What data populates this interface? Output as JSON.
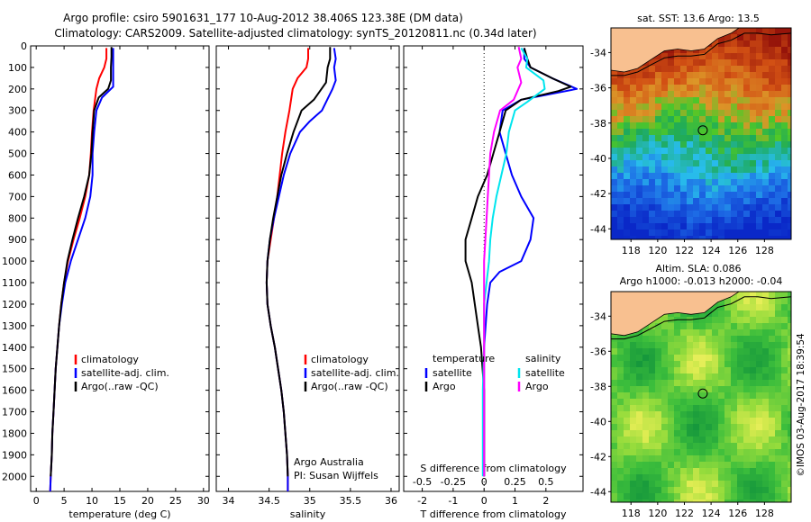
{
  "titles": {
    "line1": "Argo profile: csiro 5901631_177 10-Aug-2012 38.406S 123.38E (DM data)",
    "line2": "Climatology: CARS2009. Satellite-adjusted climatology: synTS_20120811.nc (0.34d later)"
  },
  "depth_ticks": [
    0,
    100,
    200,
    300,
    400,
    500,
    600,
    700,
    800,
    900,
    1000,
    1100,
    1200,
    1300,
    1400,
    1500,
    1600,
    1700,
    1800,
    1900,
    2000
  ],
  "colors": {
    "climatology": "#ff0000",
    "satellite": "#0000ff",
    "argo": "#000000",
    "sal_satellite": "#00e5ee",
    "sal_argo": "#ff00ff"
  },
  "chart_data": [
    {
      "type": "line",
      "name": "temperature-profile",
      "xlabel": "temperature (deg C)",
      "ylabel": "",
      "xlim": [
        -1,
        31
      ],
      "ylim": [
        2070,
        0
      ],
      "x_ticks": [
        "0",
        "5",
        "10",
        "15",
        "20",
        "25",
        "30"
      ],
      "legend": [
        "climatology",
        "satellite-adj. clim.",
        "Argo(..raw -QC)"
      ],
      "legend_position": "lower-middle",
      "series": [
        {
          "name": "climatology",
          "points": [
            [
              12.6,
              10
            ],
            [
              12.6,
              60
            ],
            [
              12.2,
              100
            ],
            [
              11.3,
              150
            ],
            [
              10.8,
              200
            ],
            [
              10.3,
              300
            ],
            [
              10,
              400
            ],
            [
              9.8,
              500
            ],
            [
              9.5,
              600
            ],
            [
              8.8,
              700
            ],
            [
              7.8,
              800
            ],
            [
              6.7,
              900
            ],
            [
              5.7,
              1000
            ],
            [
              5,
              1100
            ],
            [
              4.5,
              1200
            ],
            [
              4.1,
              1300
            ],
            [
              3.8,
              1400
            ],
            [
              3.5,
              1500
            ],
            [
              3.3,
              1600
            ],
            [
              3.1,
              1700
            ],
            [
              2.9,
              1800
            ],
            [
              2.8,
              1900
            ],
            [
              2.6,
              2000
            ],
            [
              2.5,
              2070
            ]
          ]
        },
        {
          "name": "satellite-adj. clim.",
          "points": [
            [
              13.8,
              10
            ],
            [
              13.8,
              60
            ],
            [
              13.8,
              120
            ],
            [
              13.8,
              190
            ],
            [
              11.8,
              240
            ],
            [
              10.8,
              300
            ],
            [
              10.4,
              400
            ],
            [
              10.1,
              500
            ],
            [
              10.1,
              600
            ],
            [
              9.7,
              700
            ],
            [
              8.8,
              800
            ],
            [
              7.5,
              900
            ],
            [
              6.2,
              1000
            ],
            [
              5.2,
              1100
            ],
            [
              4.6,
              1200
            ],
            [
              4.1,
              1300
            ],
            [
              3.8,
              1400
            ],
            [
              3.5,
              1500
            ],
            [
              3.3,
              1600
            ],
            [
              3.1,
              1700
            ],
            [
              2.9,
              1800
            ],
            [
              2.8,
              1900
            ],
            [
              2.6,
              2000
            ],
            [
              2.5,
              2070
            ]
          ]
        },
        {
          "name": "Argo(..raw -QC)",
          "points": [
            [
              13.5,
              5
            ],
            [
              13.5,
              50
            ],
            [
              13.4,
              100
            ],
            [
              13.4,
              160
            ],
            [
              12.9,
              200
            ],
            [
              11.2,
              240
            ],
            [
              10.4,
              300
            ],
            [
              10.1,
              400
            ],
            [
              9.9,
              500
            ],
            [
              9.5,
              600
            ],
            [
              8.6,
              700
            ],
            [
              7.5,
              800
            ],
            [
              6.5,
              900
            ],
            [
              5.6,
              1000
            ],
            [
              5,
              1100
            ],
            [
              4.5,
              1200
            ],
            [
              4.1,
              1300
            ],
            [
              3.8,
              1400
            ],
            [
              3.5,
              1500
            ],
            [
              3.3,
              1600
            ],
            [
              3.1,
              1700
            ],
            [
              2.9,
              1800
            ],
            [
              2.8,
              1900
            ],
            [
              2.6,
              2000
            ]
          ]
        }
      ]
    },
    {
      "type": "line",
      "name": "salinity-profile",
      "xlabel": "salinity",
      "ylabel": "",
      "xlim": [
        33.85,
        36.1
      ],
      "ylim": [
        2070,
        0
      ],
      "x_ticks": [
        "34",
        "34.5",
        "35",
        "35.5",
        "36"
      ],
      "legend": [
        "climatology",
        "satellite-adj. clim.",
        "Argo(..raw -QC)"
      ],
      "legend_position": "lower-middle",
      "annotation": [
        "Argo Australia",
        "PI: Susan Wijffels"
      ],
      "series": [
        {
          "name": "climatology",
          "points": [
            [
              34.98,
              10
            ],
            [
              34.98,
              60
            ],
            [
              34.96,
              100
            ],
            [
              34.85,
              150
            ],
            [
              34.79,
              200
            ],
            [
              34.75,
              300
            ],
            [
              34.7,
              400
            ],
            [
              34.66,
              500
            ],
            [
              34.63,
              600
            ],
            [
              34.6,
              700
            ],
            [
              34.56,
              800
            ],
            [
              34.52,
              900
            ],
            [
              34.48,
              1000
            ],
            [
              34.47,
              1100
            ],
            [
              34.48,
              1200
            ],
            [
              34.52,
              1300
            ],
            [
              34.57,
              1400
            ],
            [
              34.61,
              1500
            ],
            [
              34.65,
              1600
            ],
            [
              34.68,
              1700
            ],
            [
              34.7,
              1800
            ],
            [
              34.72,
              1900
            ],
            [
              34.73,
              2000
            ],
            [
              34.73,
              2070
            ]
          ]
        },
        {
          "name": "satellite-adj. clim.",
          "points": [
            [
              35.3,
              10
            ],
            [
              35.32,
              60
            ],
            [
              35.3,
              100
            ],
            [
              35.32,
              160
            ],
            [
              35.28,
              200
            ],
            [
              35.15,
              300
            ],
            [
              35.0,
              350
            ],
            [
              34.88,
              400
            ],
            [
              34.76,
              500
            ],
            [
              34.68,
              600
            ],
            [
              34.62,
              700
            ],
            [
              34.56,
              800
            ],
            [
              34.51,
              900
            ],
            [
              34.48,
              1000
            ],
            [
              34.47,
              1100
            ],
            [
              34.48,
              1200
            ],
            [
              34.52,
              1300
            ],
            [
              34.57,
              1400
            ],
            [
              34.61,
              1500
            ],
            [
              34.65,
              1600
            ],
            [
              34.68,
              1700
            ],
            [
              34.7,
              1800
            ],
            [
              34.72,
              1900
            ],
            [
              34.73,
              2000
            ],
            [
              34.73,
              2070
            ]
          ]
        },
        {
          "name": "Argo(..raw -QC)",
          "points": [
            [
              35.25,
              5
            ],
            [
              35.25,
              60
            ],
            [
              35.22,
              100
            ],
            [
              35.2,
              170
            ],
            [
              35.05,
              250
            ],
            [
              34.9,
              300
            ],
            [
              34.8,
              400
            ],
            [
              34.72,
              500
            ],
            [
              34.65,
              600
            ],
            [
              34.6,
              700
            ],
            [
              34.55,
              800
            ],
            [
              34.51,
              900
            ],
            [
              34.48,
              1000
            ],
            [
              34.47,
              1100
            ],
            [
              34.48,
              1200
            ],
            [
              34.52,
              1300
            ],
            [
              34.57,
              1400
            ],
            [
              34.61,
              1500
            ],
            [
              34.65,
              1600
            ],
            [
              34.68,
              1700
            ],
            [
              34.7,
              1800
            ],
            [
              34.72,
              1900
            ],
            [
              34.73,
              2000
            ]
          ]
        }
      ]
    },
    {
      "type": "line",
      "name": "difference-profile",
      "xlabel": "T difference from climatology",
      "x2label": "S difference from climatology",
      "xlim": [
        -2.6,
        3.2
      ],
      "x2lim": [
        -0.65,
        0.8
      ],
      "ylim": [
        2070,
        0
      ],
      "x_ticks": [
        "-2",
        "-1",
        "0",
        "1",
        "2"
      ],
      "x2_ticks": [
        "-0.5",
        "-0.25",
        "0",
        "0.25",
        "0.5"
      ],
      "legend_groups": [
        {
          "heading": "temperature",
          "items": [
            "satellite",
            "Argo"
          ]
        },
        {
          "heading": "salinity",
          "items": [
            "satellite",
            "Argo"
          ]
        }
      ],
      "legend_position": "middle",
      "series": [
        {
          "name": "temperature satellite",
          "points": [
            [
              1.3,
              10
            ],
            [
              1.3,
              60
            ],
            [
              1.5,
              100
            ],
            [
              2.2,
              150
            ],
            [
              3.0,
              200
            ],
            [
              1.2,
              250
            ],
            [
              0.6,
              300
            ],
            [
              0.5,
              400
            ],
            [
              0.7,
              500
            ],
            [
              0.9,
              600
            ],
            [
              1.2,
              700
            ],
            [
              1.6,
              800
            ],
            [
              1.5,
              900
            ],
            [
              1.2,
              1000
            ],
            [
              0.5,
              1050
            ],
            [
              0.2,
              1100
            ],
            [
              0.1,
              1200
            ],
            [
              0.05,
              1300
            ],
            [
              0,
              1400
            ],
            [
              0,
              1600
            ],
            [
              0,
              1800
            ],
            [
              0,
              2000
            ]
          ]
        },
        {
          "name": "temperature Argo",
          "points": [
            [
              1.3,
              10
            ],
            [
              1.4,
              60
            ],
            [
              1.5,
              100
            ],
            [
              2.2,
              150
            ],
            [
              2.8,
              190
            ],
            [
              2.4,
              210
            ],
            [
              1.2,
              250
            ],
            [
              0.7,
              300
            ],
            [
              0.5,
              400
            ],
            [
              0.3,
              500
            ],
            [
              0.1,
              600
            ],
            [
              -0.2,
              700
            ],
            [
              -0.4,
              800
            ],
            [
              -0.6,
              900
            ],
            [
              -0.6,
              1000
            ],
            [
              -0.5,
              1050
            ],
            [
              -0.4,
              1100
            ],
            [
              -0.3,
              1200
            ],
            [
              -0.2,
              1300
            ],
            [
              -0.1,
              1400
            ],
            [
              0,
              1600
            ],
            [
              0,
              1800
            ],
            [
              0,
              2000
            ]
          ]
        },
        {
          "name": "salinity satellite",
          "points": [
            [
              0.3,
              10
            ],
            [
              0.35,
              60
            ],
            [
              0.34,
              100
            ],
            [
              0.48,
              160
            ],
            [
              0.49,
              200
            ],
            [
              0.35,
              260
            ],
            [
              0.25,
              300
            ],
            [
              0.2,
              400
            ],
            [
              0.18,
              500
            ],
            [
              0.14,
              600
            ],
            [
              0.1,
              700
            ],
            [
              0.07,
              800
            ],
            [
              0.05,
              900
            ],
            [
              0.04,
              1000
            ],
            [
              0,
              1200
            ],
            [
              0,
              1400
            ],
            [
              -0.01,
              1600
            ],
            [
              -0.01,
              1800
            ],
            [
              -0.01,
              2000
            ]
          ]
        },
        {
          "name": "salinity Argo",
          "points": [
            [
              0.28,
              5
            ],
            [
              0.3,
              60
            ],
            [
              0.27,
              100
            ],
            [
              0.3,
              170
            ],
            [
              0.24,
              250
            ],
            [
              0.13,
              300
            ],
            [
              0.08,
              400
            ],
            [
              0.05,
              500
            ],
            [
              0.04,
              600
            ],
            [
              0.03,
              700
            ],
            [
              0.02,
              800
            ],
            [
              0.01,
              900
            ],
            [
              0,
              1000
            ],
            [
              0,
              1200
            ],
            [
              0,
              1400
            ],
            [
              0,
              1600
            ],
            [
              0,
              1800
            ],
            [
              0,
              2000
            ]
          ]
        }
      ]
    },
    {
      "type": "heatmap",
      "name": "sst-map",
      "title": "sat. SST: 13.6  Argo: 13.5",
      "xlim": [
        116.5,
        130
      ],
      "ylim": [
        -44.6,
        -32.6
      ],
      "x_ticks": [
        "118",
        "120",
        "122",
        "124",
        "126",
        "128"
      ],
      "y_ticks": [
        "-34",
        "-36",
        "-38",
        "-40",
        "-42",
        "-44"
      ],
      "float_position": [
        123.38,
        -38.406
      ]
    },
    {
      "type": "heatmap",
      "name": "sla-map",
      "title_lines": [
        "Altim. SLA: 0.086",
        "Argo h1000: -0.013 h2000: -0.04"
      ],
      "xlim": [
        116.5,
        130
      ],
      "ylim": [
        -44.6,
        -32.6
      ],
      "x_ticks": [
        "118",
        "120",
        "122",
        "124",
        "126",
        "128"
      ],
      "y_ticks": [
        "-34",
        "-36",
        "-38",
        "-40",
        "-42",
        "-44"
      ],
      "float_position": [
        123.38,
        -38.406
      ]
    }
  ],
  "copyright": "©IMOS 03-Aug-2017 18:39:54"
}
